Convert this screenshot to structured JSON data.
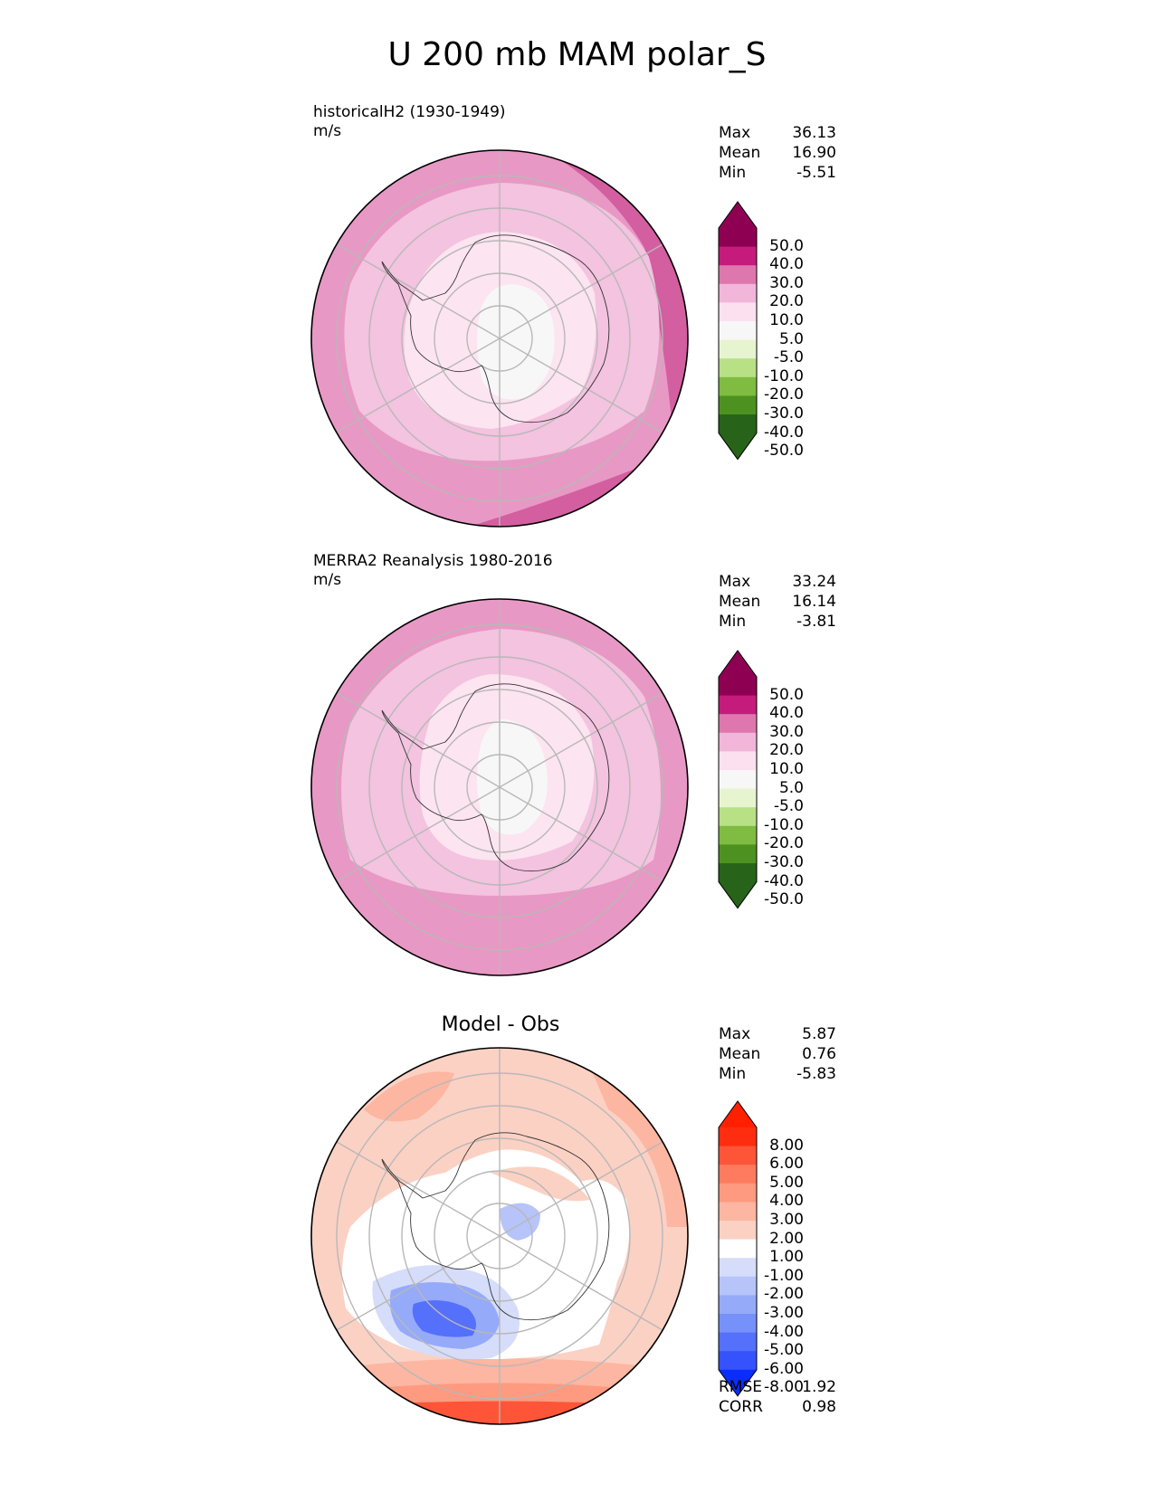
{
  "title": "U 200 mb MAM polar_S",
  "panels": [
    {
      "title_line1": "historicalH2 (1930-1949)",
      "title_line2": "m/s",
      "stats": {
        "max_label": "Max",
        "max": "36.13",
        "mean_label": "Mean",
        "mean": "16.90",
        "min_label": "Min",
        "min": "-5.51"
      },
      "colorbar": {
        "labels": [
          "50.0",
          "40.0",
          "30.0",
          "20.0",
          "10.0",
          "5.0",
          "-5.0",
          "-10.0",
          "-20.0",
          "-30.0",
          "-40.0",
          "-50.0"
        ],
        "colors": [
          "#8e0152",
          "#c51b7d",
          "#de77ae",
          "#f1b6da",
          "#fde0ef",
          "#f7f7f7",
          "#e6f5d0",
          "#b8e186",
          "#7fbc41",
          "#4d9221",
          "#276419"
        ],
        "top_color": "#8e0152",
        "bottom_color": "#276419"
      }
    },
    {
      "title_line1": "MERRA2 Reanalysis 1980-2016",
      "title_line2": "m/s",
      "stats": {
        "max_label": "Max",
        "max": "33.24",
        "mean_label": "Mean",
        "mean": "16.14",
        "min_label": "Min",
        "min": "-3.81"
      },
      "colorbar": {
        "labels": [
          "50.0",
          "40.0",
          "30.0",
          "20.0",
          "10.0",
          "5.0",
          "-5.0",
          "-10.0",
          "-20.0",
          "-30.0",
          "-40.0",
          "-50.0"
        ],
        "colors": [
          "#8e0152",
          "#c51b7d",
          "#de77ae",
          "#f1b6da",
          "#fde0ef",
          "#f7f7f7",
          "#e6f5d0",
          "#b8e186",
          "#7fbc41",
          "#4d9221",
          "#276419"
        ],
        "top_color": "#8e0152",
        "bottom_color": "#276419"
      }
    },
    {
      "title": "Model - Obs",
      "stats": {
        "max_label": "Max",
        "max": "5.87",
        "mean_label": "Mean",
        "mean": "0.76",
        "min_label": "Min",
        "min": "-5.83"
      },
      "colorbar": {
        "labels": [
          "8.00",
          "6.00",
          "5.00",
          "4.00",
          "3.00",
          "2.00",
          "1.00",
          "-1.00",
          "-2.00",
          "-3.00",
          "-4.00",
          "-5.00",
          "-6.00",
          "-8.00"
        ],
        "colors": [
          "#fe2d0f",
          "#fe5538",
          "#fe7b5f",
          "#fd9a80",
          "#fcb6a1",
          "#fbd1c4",
          "#ffffff",
          "#d6ddfa",
          "#b6c4fa",
          "#96aafa",
          "#7791fb",
          "#5570fb",
          "#3552fc"
        ],
        "top_color": "#ff2000",
        "bottom_color": "#0a2dfc"
      },
      "metrics": {
        "rmse_label": "RMSE",
        "rmse": "1.92",
        "corr_label": "CORR",
        "corr": "0.98"
      }
    }
  ]
}
